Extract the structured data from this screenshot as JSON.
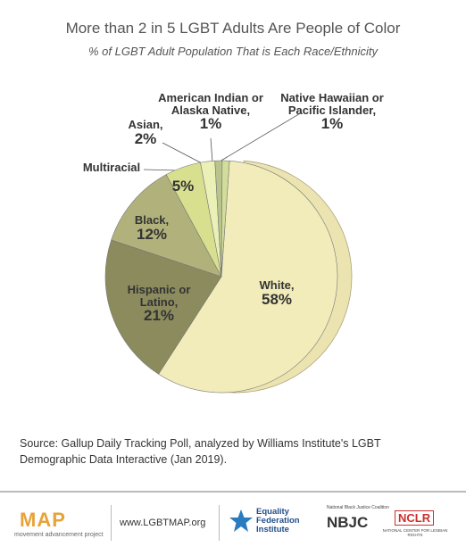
{
  "chart_data": {
    "type": "pie",
    "title": "More than 2 in 5 LGBT Adults Are People of Color",
    "subtitle": "% of LGBT Adult Population That is Each Race/Ethnicity",
    "categories": [
      "White,",
      "Hispanic or Latino,",
      "Black,",
      "Multiracial",
      "Asian,",
      "American Indian or Alaska Native,",
      "Native Hawaiian or Pacific Islander,"
    ],
    "values": [
      58,
      21,
      12,
      5,
      2,
      1,
      1
    ],
    "value_labels": [
      "58%",
      "21%",
      "12%",
      "5%",
      "2%",
      "1%",
      "1%"
    ],
    "colors": [
      "#f2ecbb",
      "#8b8b5e",
      "#b1b27b",
      "#d8e08f",
      "#eaf0b6",
      "#b9c48a",
      "#d3dd9b"
    ],
    "source": "Source: Gallup Daily Tracking Poll, analyzed by Williams Institute's LGBT Demographic Data Interactive (Jan 2019)."
  },
  "footer": {
    "map_logo": "MAP",
    "map_tagline": "movement advancement project",
    "url": "www.LGBTMAP.org",
    "equality": "Equality Federation Institute",
    "nbjc": "NBJC",
    "nbjc_small": "National Black Justice Coalition",
    "nclr": "NCLR",
    "nclr_small": "NATIONAL CENTER FOR LESBIAN RIGHTS"
  }
}
